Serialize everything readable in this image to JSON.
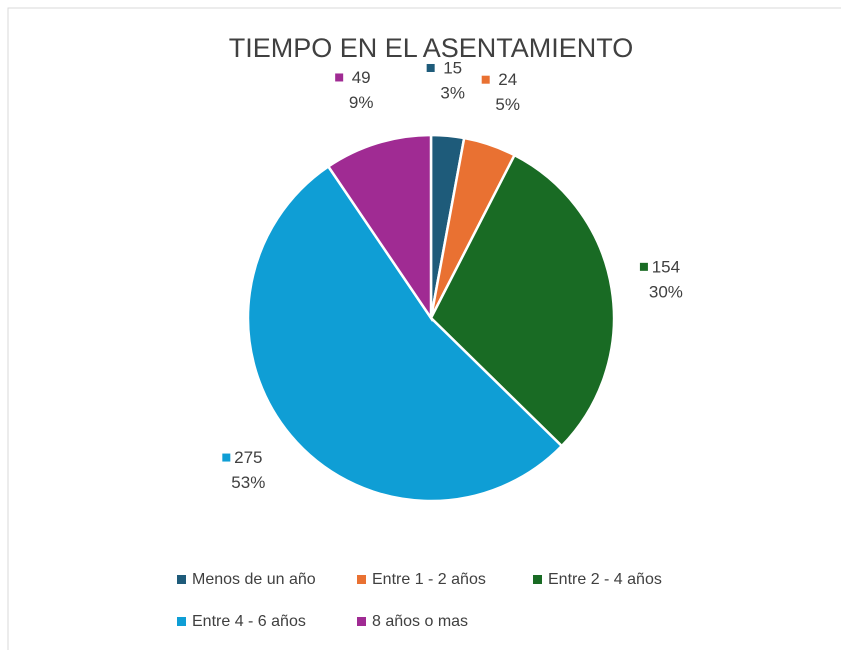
{
  "chart_data": {
    "type": "pie",
    "title": "TIEMPO EN EL ASENTAMIENTO",
    "categories": [
      "Menos de un año",
      "Entre 1 - 2 años",
      "Entre 2 - 4 años",
      "Entre 4 - 6 años",
      "8 años o mas"
    ],
    "values": [
      15,
      24,
      154,
      275,
      49
    ],
    "percent_labels": [
      "3%",
      "5%",
      "30%",
      "53%",
      "9%"
    ],
    "colors": [
      "#1e5b7a",
      "#e97132",
      "#196b24",
      "#0f9ed5",
      "#a02b93"
    ],
    "legend": "bottom"
  }
}
